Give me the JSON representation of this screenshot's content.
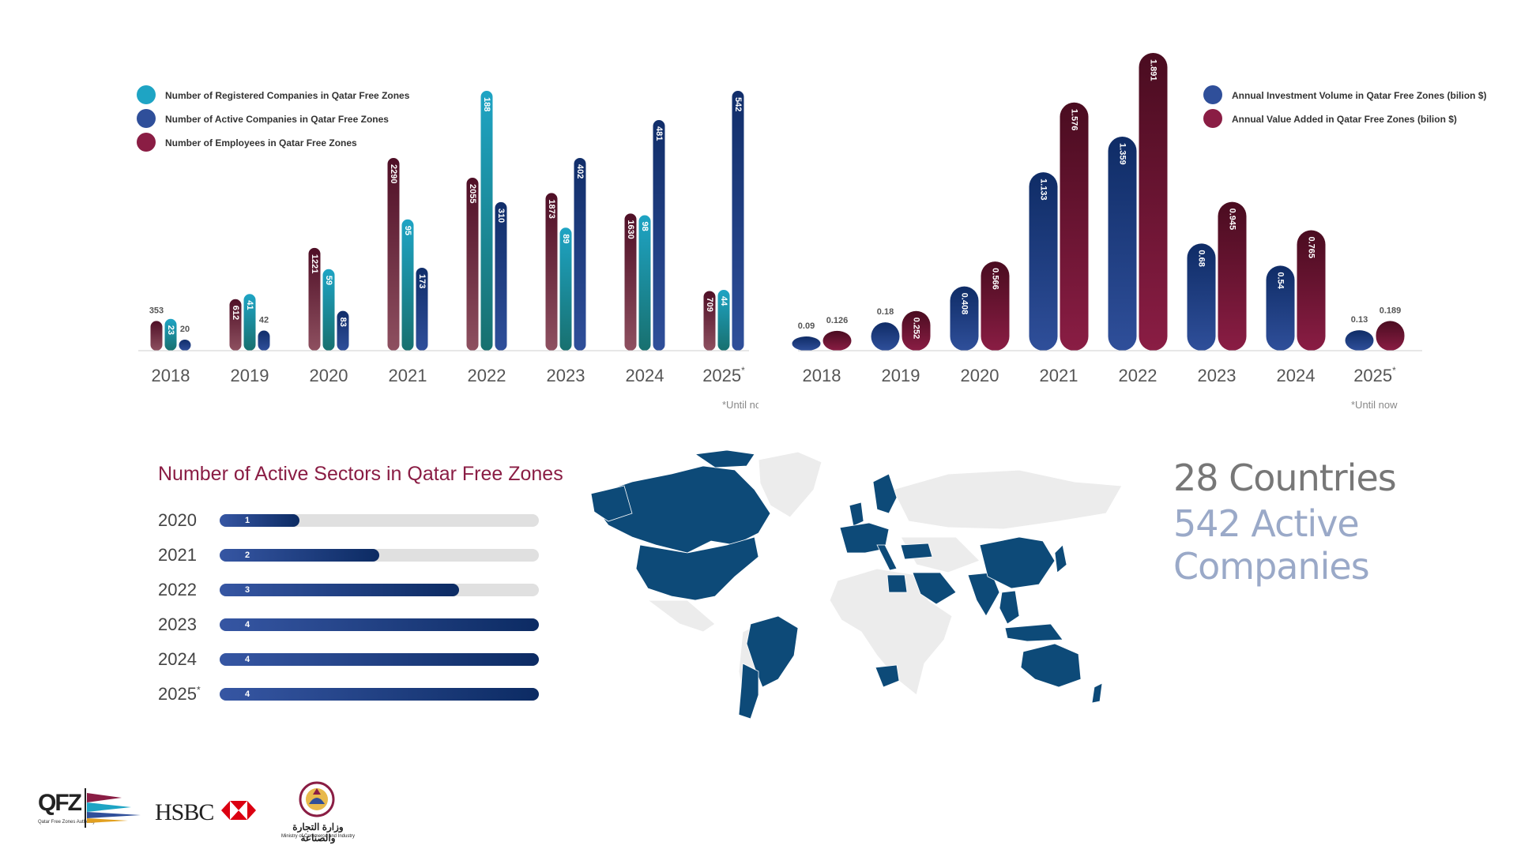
{
  "chart_data": [
    {
      "type": "bar",
      "categories": [
        "2018",
        "2019",
        "2020",
        "2021",
        "2022",
        "2023",
        "2024",
        "2025*"
      ],
      "series": [
        {
          "name": "Number of Employees in Qatar Free Zones",
          "values": [
            353,
            612,
            1221,
            2290,
            2055,
            1873,
            1630,
            709
          ],
          "color": "#8a1d44"
        },
        {
          "name": "Number of Registered Companies in Qatar Free Zones",
          "values": [
            23,
            41,
            59,
            95,
            188,
            89,
            98,
            44
          ],
          "color": "#1ea4c4"
        },
        {
          "name": "Number of Active Companies in Qatar Free Zones",
          "values": [
            20,
            42,
            83,
            173,
            310,
            402,
            481,
            542
          ],
          "color": "#2f4f9a"
        }
      ],
      "legend": [
        "Number of Registered Companies in Qatar Free Zones",
        "Number of Active Companies in Qatar Free Zones",
        "Number of Employees in Qatar Free Zones"
      ],
      "legend_placement": "top-left",
      "note": "*Until now",
      "grid": false
    },
    {
      "type": "bar",
      "categories": [
        "2018",
        "2019",
        "2020",
        "2021",
        "2022",
        "2023",
        "2024",
        "2025*"
      ],
      "series": [
        {
          "name": "Annual Investment Volume in Qatar Free Zones (bilion $)",
          "values": [
            0.09,
            0.18,
            0.408,
            1.133,
            1.359,
            0.68,
            0.54,
            0.13
          ],
          "labels": [
            "0.09",
            "0.18",
            "0.408",
            "1.133",
            "1.359",
            "0.68",
            "0.54",
            "0.13"
          ],
          "color": "#2f4f9a"
        },
        {
          "name": "Annual Value Added in Qatar Free Zones (bilion $)",
          "values": [
            0.126,
            0.252,
            0.566,
            1.576,
            1.891,
            0.945,
            0.765,
            0.189
          ],
          "labels": [
            "0.126",
            "0.252",
            "0.566",
            "1.576",
            "1.891",
            "0.945",
            "0.765",
            "0.189"
          ],
          "color": "#8a1d44"
        }
      ],
      "legend_placement": "top-right",
      "note": "*Until now",
      "grid": false
    }
  ],
  "sectors": {
    "title": "Number of Active Sectors in Qatar Free Zones",
    "max": 4,
    "rows": [
      {
        "year": "2020",
        "value": 1
      },
      {
        "year": "2021",
        "value": 2
      },
      {
        "year": "2022",
        "value": 3
      },
      {
        "year": "2023",
        "value": 4
      },
      {
        "year": "2024",
        "value": 4
      },
      {
        "year": "2025*",
        "value": 4
      }
    ]
  },
  "stats": {
    "countries": "28 Countries",
    "companies": "542 Active Companies"
  },
  "logos": {
    "qfz": "QFZ",
    "qfz_sub": "Qatar Free Zones Authority",
    "hsbc": "HSBC",
    "moci_ar": "وزارة التجارة والصناعة",
    "moci_en": "Ministry of Commerce and Industry"
  },
  "colors": {
    "maroon": "#8a1d44",
    "teal": "#1ea4c4",
    "navy": "#2f4f9a",
    "map_highlight": "#0d4a78",
    "map_base": "#ececec"
  }
}
